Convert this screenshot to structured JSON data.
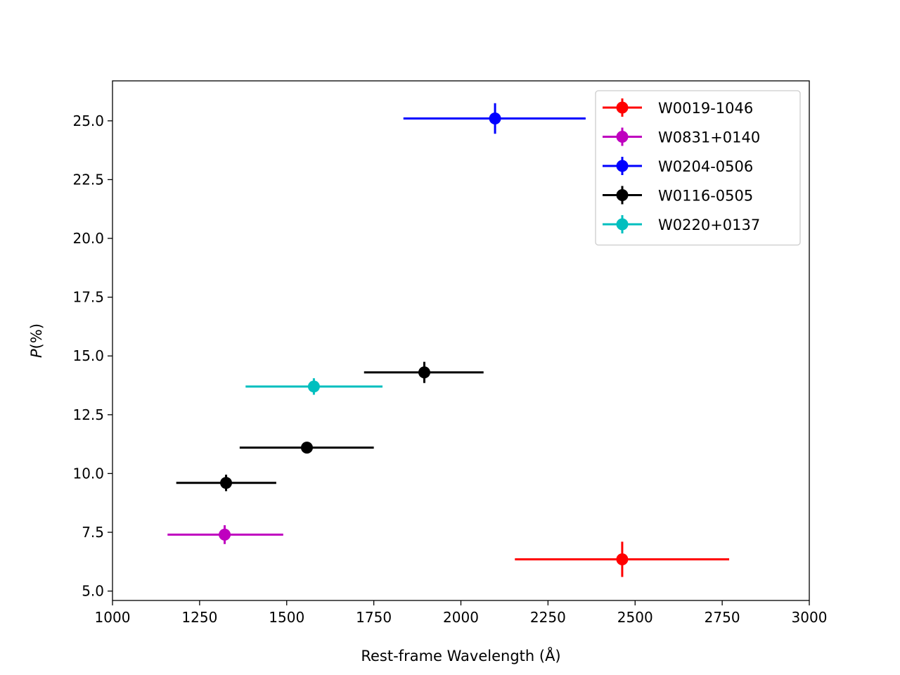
{
  "chart_data": {
    "type": "scatter",
    "title": "",
    "xlabel": "Rest-frame Wavelength (Å)",
    "ylabel": "(%)",
    "ylabel_italic_prefix": "P",
    "xlim": [
      1000,
      3000
    ],
    "ylim": [
      4.6,
      26.7
    ],
    "xticks": [
      1000,
      1250,
      1500,
      1750,
      2000,
      2250,
      2500,
      2750,
      3000
    ],
    "xtick_labels": [
      "1000",
      "1250",
      "1500",
      "1750",
      "2000",
      "2250",
      "2500",
      "2750",
      "3000"
    ],
    "yticks": [
      5.0,
      7.5,
      10.0,
      12.5,
      15.0,
      17.5,
      20.0,
      22.5,
      25.0
    ],
    "ytick_labels": [
      "5.0",
      "7.5",
      "10.0",
      "12.5",
      "15.0",
      "17.5",
      "20.0",
      "22.5",
      "25.0"
    ],
    "grid": false,
    "legend_position": "top-right",
    "series": [
      {
        "name": "W0019-1046",
        "color": "#ff0000",
        "points": [
          {
            "x": 2463,
            "y": 6.35,
            "xmin": 2155,
            "xmax": 2770,
            "yerr": 0.75
          }
        ]
      },
      {
        "name": "W0831+0140",
        "color": "#bf00bf",
        "points": [
          {
            "x": 1322,
            "y": 7.4,
            "xmin": 1158,
            "xmax": 1490,
            "yerr": 0.4
          }
        ]
      },
      {
        "name": "W0204-0506",
        "color": "#0000ff",
        "points": [
          {
            "x": 2098,
            "y": 25.1,
            "xmin": 1835,
            "xmax": 2358,
            "yerr": 0.65
          }
        ]
      },
      {
        "name": "W0116-0505",
        "color": "#000000",
        "points": [
          {
            "x": 1326,
            "y": 9.6,
            "xmin": 1183,
            "xmax": 1470,
            "yerr": 0.35
          },
          {
            "x": 1558,
            "y": 11.1,
            "xmin": 1365,
            "xmax": 1750,
            "yerr": 0.2
          },
          {
            "x": 1895,
            "y": 14.3,
            "xmin": 1722,
            "xmax": 2065,
            "yerr": 0.45
          }
        ]
      },
      {
        "name": "W0220+0137",
        "color": "#00bfbf",
        "points": [
          {
            "x": 1578,
            "y": 13.7,
            "xmin": 1382,
            "xmax": 1775,
            "yerr": 0.35
          }
        ]
      }
    ]
  }
}
